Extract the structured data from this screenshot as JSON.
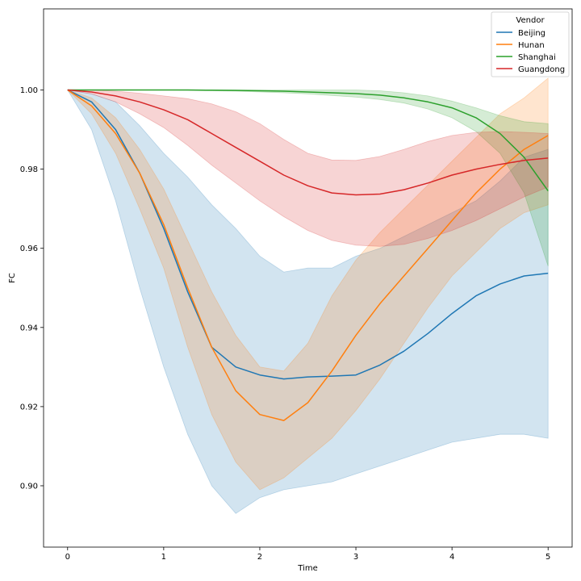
{
  "chart_data": {
    "type": "line",
    "title": "",
    "xlabel": "Time",
    "ylabel": "FC",
    "xlim": [
      -0.25,
      5.25
    ],
    "ylim": [
      0.8845,
      1.0205
    ],
    "xticks": [
      "0",
      "1",
      "2",
      "3",
      "4",
      "5"
    ],
    "yticks": [
      "0.90",
      "0.92",
      "0.94",
      "0.96",
      "0.98",
      "1.00"
    ],
    "grid": false,
    "legend": {
      "title": "Vendor",
      "position": "top-right"
    },
    "series": [
      {
        "name": "Beijing",
        "color": "#1f77b4",
        "x": [
          0,
          0.25,
          0.5,
          0.75,
          1.0,
          1.25,
          1.5,
          1.75,
          2.0,
          2.25,
          2.5,
          2.75,
          3.0,
          3.25,
          3.5,
          3.75,
          4.0,
          4.25,
          4.5,
          4.75,
          5.0
        ],
        "y": [
          1.0,
          0.997,
          0.99,
          0.979,
          0.965,
          0.949,
          0.935,
          0.93,
          0.928,
          0.927,
          0.9275,
          0.9277,
          0.928,
          0.9305,
          0.934,
          0.9385,
          0.9435,
          0.948,
          0.951,
          0.953,
          0.9537
        ],
        "lower": [
          1.0,
          0.99,
          0.972,
          0.95,
          0.93,
          0.913,
          0.9,
          0.893,
          0.897,
          0.899,
          0.9,
          0.901,
          0.903,
          0.905,
          0.907,
          0.909,
          0.911,
          0.912,
          0.913,
          0.913,
          0.912
        ],
        "upper": [
          1.0,
          0.999,
          0.997,
          0.991,
          0.984,
          0.978,
          0.971,
          0.965,
          0.958,
          0.954,
          0.955,
          0.955,
          0.958,
          0.96,
          0.963,
          0.966,
          0.969,
          0.972,
          0.977,
          0.983,
          0.985
        ]
      },
      {
        "name": "Hunan",
        "color": "#ff7f0e",
        "x": [
          0,
          0.25,
          0.5,
          0.75,
          1.0,
          1.25,
          1.5,
          1.75,
          2.0,
          2.25,
          2.5,
          2.75,
          3.0,
          3.25,
          3.5,
          3.75,
          4.0,
          4.25,
          4.5,
          4.75,
          5.0
        ],
        "y": [
          1.0,
          0.996,
          0.989,
          0.979,
          0.966,
          0.95,
          0.935,
          0.924,
          0.918,
          0.9165,
          0.921,
          0.929,
          0.938,
          0.946,
          0.953,
          0.96,
          0.967,
          0.974,
          0.98,
          0.985,
          0.9885
        ],
        "lower": [
          1.0,
          0.994,
          0.984,
          0.97,
          0.955,
          0.935,
          0.918,
          0.906,
          0.899,
          0.902,
          0.907,
          0.912,
          0.919,
          0.927,
          0.936,
          0.945,
          0.953,
          0.959,
          0.965,
          0.969,
          0.971
        ],
        "upper": [
          1.0,
          0.998,
          0.993,
          0.985,
          0.975,
          0.962,
          0.949,
          0.938,
          0.93,
          0.929,
          0.936,
          0.948,
          0.957,
          0.964,
          0.97,
          0.976,
          0.982,
          0.988,
          0.994,
          0.998,
          1.003
        ]
      },
      {
        "name": "Shanghai",
        "color": "#2ca02c",
        "x": [
          0,
          0.25,
          0.5,
          0.75,
          1.0,
          1.25,
          1.5,
          1.75,
          2.0,
          2.25,
          2.5,
          2.75,
          3.0,
          3.25,
          3.5,
          3.75,
          4.0,
          4.25,
          4.5,
          4.75,
          5.0
        ],
        "y": [
          1.0,
          1.0,
          1.0,
          1.0,
          1.0,
          1.0,
          0.99995,
          0.9999,
          0.9998,
          0.9997,
          0.9995,
          0.9993,
          0.9991,
          0.9987,
          0.998,
          0.997,
          0.9955,
          0.993,
          0.989,
          0.983,
          0.9745
        ],
        "lower": [
          1.0,
          1.0,
          1.0,
          1.0,
          1.0,
          0.9999,
          0.9998,
          0.9997,
          0.9995,
          0.9993,
          0.999,
          0.9986,
          0.9982,
          0.9976,
          0.9967,
          0.9952,
          0.993,
          0.9895,
          0.984,
          0.974,
          0.9555
        ],
        "upper": [
          1.0,
          1.0,
          1.0,
          1.0,
          1.0,
          1.0,
          1.0,
          1.0,
          1.0,
          1.0,
          1.0,
          1.0,
          1.0,
          0.9998,
          0.9993,
          0.9985,
          0.9972,
          0.9955,
          0.9935,
          0.992,
          0.9915
        ]
      },
      {
        "name": "Guangdong",
        "color": "#d62728",
        "x": [
          0,
          0.25,
          0.5,
          0.75,
          1.0,
          1.25,
          1.5,
          1.75,
          2.0,
          2.25,
          2.5,
          2.75,
          3.0,
          3.25,
          3.5,
          3.75,
          4.0,
          4.25,
          4.5,
          4.75,
          5.0
        ],
        "y": [
          1.0,
          0.9995,
          0.9985,
          0.997,
          0.995,
          0.9925,
          0.989,
          0.9855,
          0.982,
          0.9785,
          0.9758,
          0.974,
          0.9735,
          0.9737,
          0.9748,
          0.9765,
          0.9785,
          0.98,
          0.9812,
          0.9822,
          0.9828
        ],
        "lower": [
          1.0,
          0.999,
          0.997,
          0.994,
          0.9905,
          0.986,
          0.981,
          0.9765,
          0.972,
          0.968,
          0.9645,
          0.962,
          0.9608,
          0.9605,
          0.961,
          0.9625,
          0.9645,
          0.967,
          0.97,
          0.973,
          0.9755
        ],
        "upper": [
          1.0,
          1.0,
          0.9997,
          0.9992,
          0.9985,
          0.9978,
          0.9965,
          0.9945,
          0.9915,
          0.9875,
          0.984,
          0.9823,
          0.9822,
          0.9832,
          0.985,
          0.987,
          0.9885,
          0.9893,
          0.9895,
          0.9893,
          0.989
        ]
      }
    ]
  }
}
